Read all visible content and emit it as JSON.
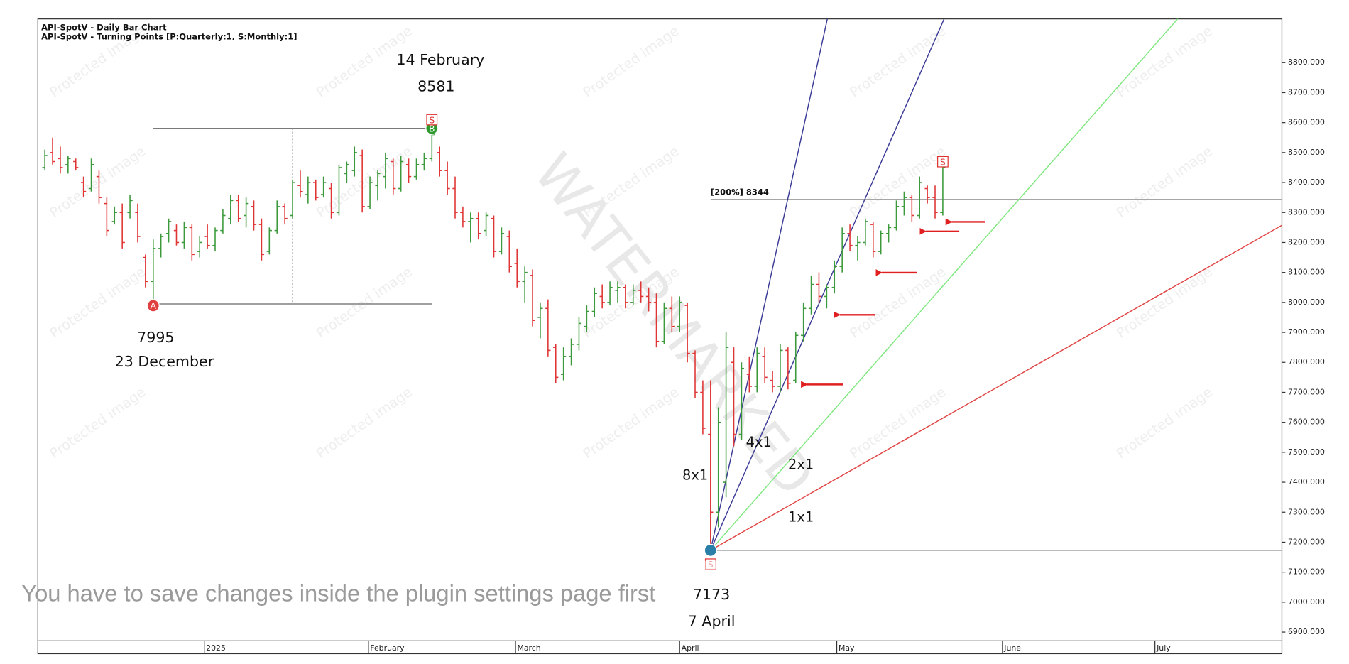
{
  "chart_data": {
    "type": "ohlc",
    "title": "API-SpotV - Daily Bar Chart",
    "subtitle": "API-SpotV - Turning Points [P:Quarterly:1, S:Monthly:1]",
    "x": [
      0,
      1,
      2,
      3,
      4,
      5,
      6,
      7,
      8,
      9,
      10,
      11,
      12,
      13,
      14,
      15,
      16,
      17,
      18,
      19,
      20,
      21,
      22,
      23,
      24,
      25,
      26,
      27,
      28,
      29,
      30,
      31,
      32,
      33,
      34,
      35,
      36,
      37,
      38,
      39,
      40,
      41,
      42,
      43,
      44,
      45,
      46,
      47,
      48,
      49,
      50,
      51,
      52,
      53,
      54,
      55,
      56,
      57,
      58,
      59,
      60,
      61,
      62,
      63,
      64,
      65,
      66,
      67,
      68,
      69,
      70,
      71,
      72,
      73,
      74,
      75,
      76,
      77,
      78,
      79,
      80,
      81,
      82,
      83,
      84,
      85,
      86,
      87,
      88,
      89,
      90,
      91,
      92,
      93,
      94,
      95,
      96,
      97,
      98,
      99,
      100,
      101,
      102,
      103,
      104,
      105,
      106,
      107,
      108,
      109,
      110,
      111,
      112,
      113,
      114,
      115,
      116
    ],
    "open": [
      8450,
      8500,
      8480,
      8460,
      8470,
      8400,
      8380,
      8420,
      8330,
      8270,
      8300,
      8300,
      8300,
      8150,
      8070,
      8180,
      8230,
      8240,
      8200,
      8250,
      8170,
      8220,
      8190,
      8240,
      8280,
      8340,
      8290,
      8320,
      8260,
      8170,
      8240,
      8320,
      8290,
      8390,
      8360,
      8400,
      8360,
      8380,
      8300,
      8430,
      8440,
      8490,
      8320,
      8390,
      8420,
      8470,
      8380,
      8460,
      8420,
      8460,
      8480,
      8500,
      8440,
      8380,
      8300,
      8270,
      8280,
      8240,
      8280,
      8170,
      8220,
      8130,
      8070,
      8090,
      7950,
      7980,
      7850,
      7760,
      7820,
      7860,
      7920,
      7970,
      8020,
      8000,
      8040,
      8050,
      8000,
      8040,
      8020,
      8000,
      7870,
      7980,
      7920,
      7990,
      7830,
      7700,
      7560,
      7300,
      7400,
      7800,
      7560,
      7760,
      7720,
      7820,
      7740,
      7720,
      7840,
      7740,
      7890,
      7980,
      8060,
      8020,
      8050,
      8120,
      8230,
      8190,
      8200,
      8260,
      8170,
      8230,
      8250,
      8320,
      8350,
      8290,
      8380,
      8350,
      8300
    ],
    "high": [
      8510,
      8550,
      8520,
      8490,
      8480,
      8420,
      8480,
      8440,
      8350,
      8320,
      8330,
      8360,
      8330,
      8160,
      8210,
      8230,
      8280,
      8260,
      8270,
      8260,
      8220,
      8260,
      8250,
      8310,
      8360,
      8360,
      8350,
      8340,
      8280,
      8250,
      8340,
      8330,
      8410,
      8440,
      8420,
      8410,
      8420,
      8400,
      8460,
      8470,
      8520,
      8510,
      8420,
      8440,
      8500,
      8480,
      8490,
      8480,
      8480,
      8500,
      8581,
      8520,
      8470,
      8420,
      8320,
      8300,
      8300,
      8300,
      8290,
      8250,
      8240,
      8180,
      8120,
      8110,
      8000,
      8010,
      7860,
      7850,
      7880,
      7950,
      7990,
      8050,
      8060,
      8070,
      8070,
      8060,
      8060,
      8070,
      8050,
      8030,
      8000,
      8020,
      8020,
      8000,
      7840,
      7740,
      7740,
      7650,
      7900,
      7850,
      7800,
      7820,
      7850,
      7850,
      7770,
      7860,
      7850,
      7900,
      8000,
      8090,
      8100,
      8060,
      8140,
      8250,
      8260,
      8220,
      8280,
      8270,
      8240,
      8260,
      8340,
      8370,
      8360,
      8420,
      8390,
      8390,
      8460
    ],
    "low": [
      8440,
      8460,
      8430,
      8430,
      8440,
      8350,
      8370,
      8330,
      8220,
      8260,
      8180,
      8280,
      8200,
      8050,
      7995,
      8150,
      8200,
      8190,
      8180,
      8140,
      8150,
      8180,
      8170,
      8230,
      8260,
      8270,
      8250,
      8240,
      8140,
      8160,
      8230,
      8260,
      8280,
      8350,
      8330,
      8340,
      8350,
      8280,
      8290,
      8400,
      8420,
      8300,
      8310,
      8340,
      8380,
      8360,
      8370,
      8400,
      8410,
      8440,
      8470,
      8420,
      8360,
      8280,
      8250,
      8200,
      8210,
      8220,
      8150,
      8160,
      8100,
      8050,
      8000,
      7920,
      7880,
      7820,
      7730,
      7740,
      7790,
      7840,
      7900,
      7950,
      7980,
      7990,
      8000,
      7980,
      7990,
      8000,
      7970,
      7850,
      7860,
      7900,
      7900,
      7800,
      7680,
      7560,
      7173,
      7250,
      7350,
      7520,
      7540,
      7700,
      7700,
      7730,
      7700,
      7700,
      7710,
      7730,
      7870,
      7960,
      8000,
      7980,
      8030,
      8100,
      8170,
      8140,
      8190,
      8150,
      8160,
      8200,
      8240,
      8290,
      8270,
      8280,
      8330,
      8280,
      8290
    ],
    "close": [
      8490,
      8470,
      8450,
      8480,
      8450,
      8370,
      8460,
      8350,
      8240,
      8300,
      8200,
      8340,
      8220,
      8070,
      8180,
      8220,
      8270,
      8200,
      8250,
      8160,
      8200,
      8190,
      8240,
      8290,
      8340,
      8280,
      8330,
      8260,
      8160,
      8240,
      8320,
      8280,
      8400,
      8370,
      8400,
      8350,
      8400,
      8300,
      8450,
      8460,
      8500,
      8320,
      8400,
      8430,
      8480,
      8380,
      8470,
      8420,
      8460,
      8480,
      8560,
      8440,
      8380,
      8300,
      8270,
      8280,
      8230,
      8290,
      8170,
      8230,
      8120,
      8070,
      8100,
      7940,
      7980,
      7840,
      7750,
      7820,
      7860,
      7930,
      7970,
      8030,
      8000,
      8050,
      8050,
      8000,
      8040,
      8020,
      8000,
      7870,
      7980,
      7920,
      8000,
      7830,
      7700,
      7580,
      7300,
      7600,
      7850,
      7560,
      7780,
      7720,
      7830,
      7750,
      7720,
      7840,
      7730,
      7890,
      7980,
      8060,
      8020,
      8050,
      8120,
      8230,
      8190,
      8200,
      8270,
      8170,
      8230,
      8250,
      8320,
      8350,
      8290,
      8400,
      8350,
      8300,
      8450
    ],
    "up_color": "#3c9a3c",
    "down_color": "#e03535",
    "xlim": [
      -0.9,
      159.8
    ],
    "xticks": [
      {
        "value": 20.6,
        "label": "2025"
      },
      {
        "value": 41.8,
        "label": "February"
      },
      {
        "value": 60.8,
        "label": "March"
      },
      {
        "value": 82,
        "label": "April"
      },
      {
        "value": 102.3,
        "label": "May"
      },
      {
        "value": 123.7,
        "label": "June"
      },
      {
        "value": 143.4,
        "label": "July"
      }
    ],
    "ylim": [
      6871,
      8946
    ],
    "yticks": [
      {
        "value": 6900,
        "label": "6900.000"
      },
      {
        "value": 7000,
        "label": "7000.000"
      },
      {
        "value": 7100,
        "label": "7100.000"
      },
      {
        "value": 7200,
        "label": "7200.000"
      },
      {
        "value": 7300,
        "label": "7300.000"
      },
      {
        "value": 7400,
        "label": "7400.000"
      },
      {
        "value": 7500,
        "label": "7500.000"
      },
      {
        "value": 7600,
        "label": "7600.000"
      },
      {
        "value": 7700,
        "label": "7700.000"
      },
      {
        "value": 7800,
        "label": "7800.000"
      },
      {
        "value": 7900,
        "label": "7900.000"
      },
      {
        "value": 8000,
        "label": "8000.000"
      },
      {
        "value": 8100,
        "label": "8100.000"
      },
      {
        "value": 8200,
        "label": "8200.000"
      },
      {
        "value": 8300,
        "label": "8300.000"
      },
      {
        "value": 8400,
        "label": "8400.000"
      },
      {
        "value": 8500,
        "label": "8500.000"
      },
      {
        "value": 8600,
        "label": "8600.000"
      },
      {
        "value": 8700,
        "label": "8700.000"
      },
      {
        "value": 8800,
        "label": "8800.000"
      }
    ],
    "turning_points": [
      {
        "x": 14,
        "value": 7995,
        "date": "23 December",
        "marker": "A",
        "color": "#e04040"
      },
      {
        "x": 50,
        "value": 8581,
        "date": "14 February",
        "marker": "B",
        "color": "#2e9a2e",
        "flag": "S"
      },
      {
        "x": 86,
        "value": 7173,
        "date": "7 April",
        "flag": "S",
        "color": "#2a7fa8"
      }
    ],
    "end_flag": {
      "x": 116,
      "flag": "S"
    },
    "level": {
      "value": 8344,
      "label": "[200%] 8344"
    },
    "fan": [
      {
        "label": "8x1",
        "color": "#3b3b96"
      },
      {
        "label": "4x1",
        "color": "#3b3b96"
      },
      {
        "label": "2x1",
        "color": "#7ee87e"
      },
      {
        "label": "1x1",
        "color": "#e04545"
      }
    ],
    "watermark": "WATERMARKED",
    "watermark_small": "Protected image",
    "overlay_message": "You have to save changes inside the plugin settings page first"
  }
}
